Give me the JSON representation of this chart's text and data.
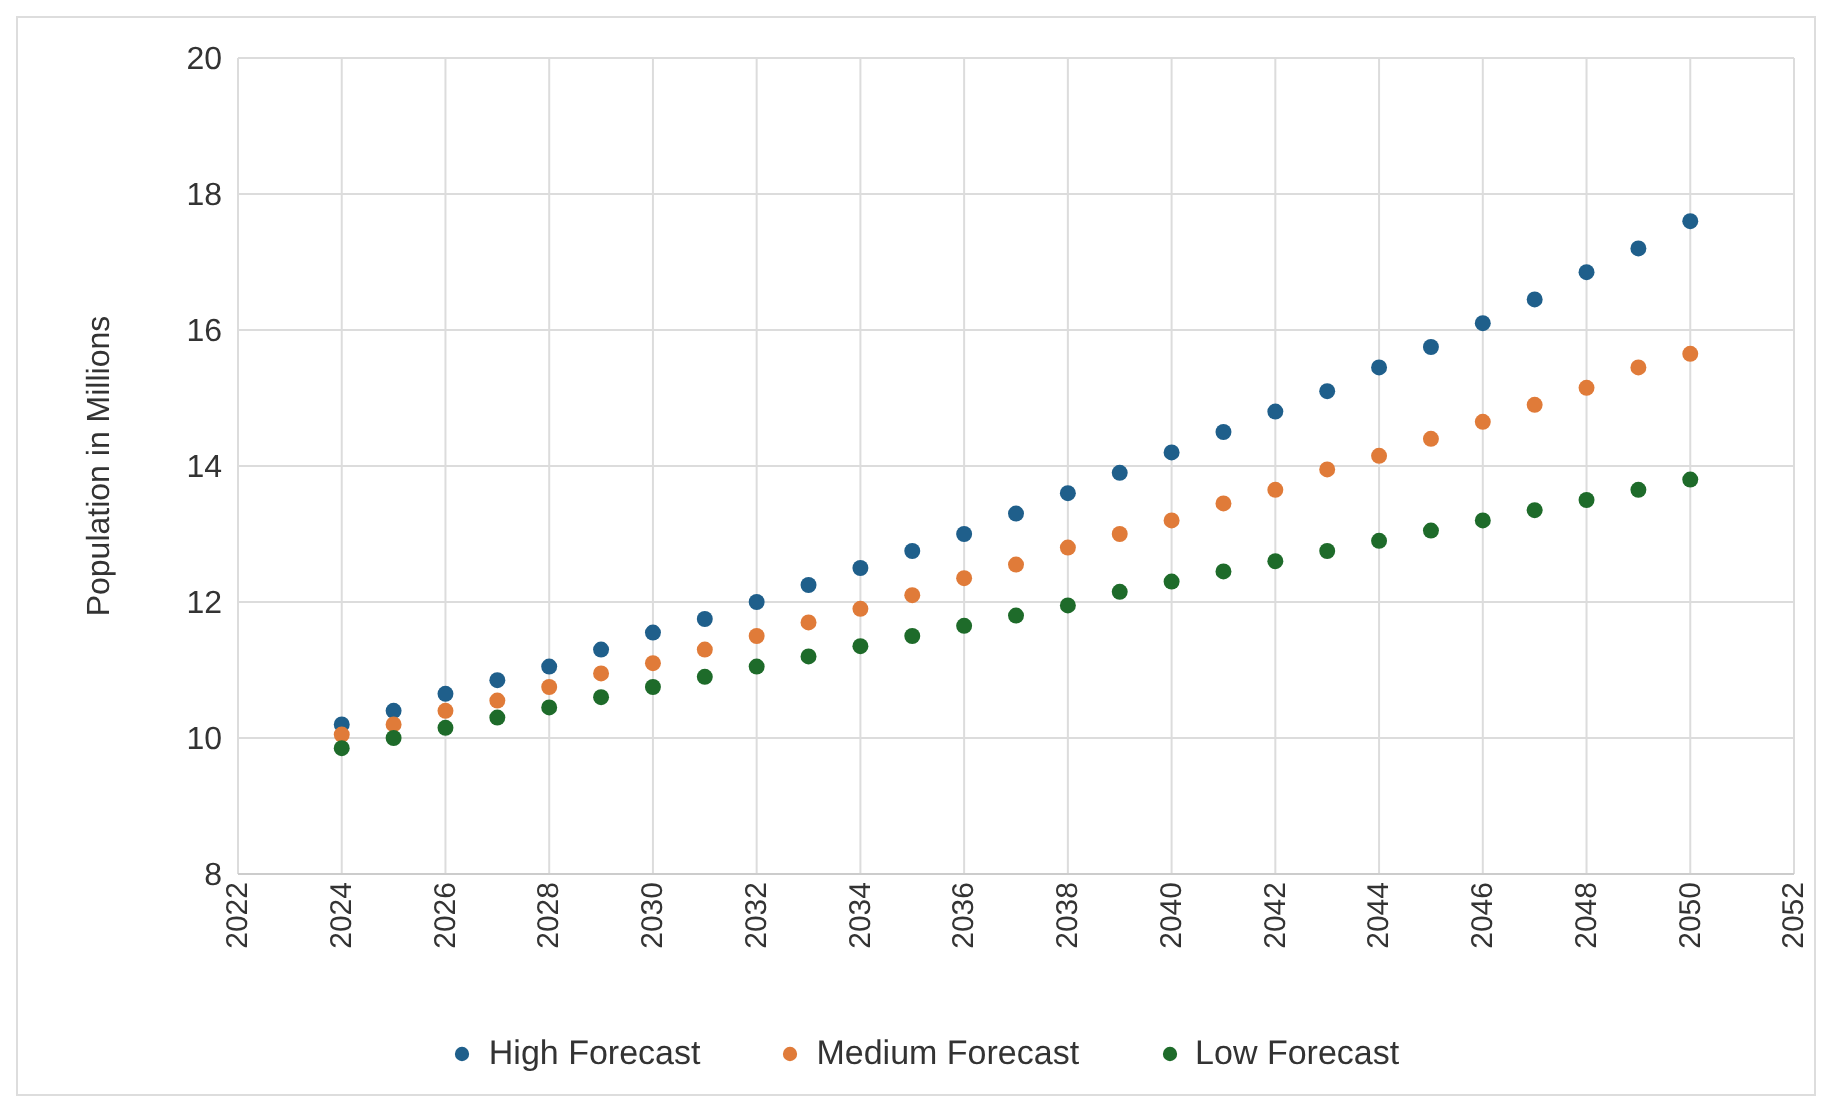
{
  "chart_data": {
    "type": "scatter",
    "ylabel": "Population in Millions",
    "x": [
      2024,
      2025,
      2026,
      2027,
      2028,
      2029,
      2030,
      2031,
      2032,
      2033,
      2034,
      2035,
      2036,
      2037,
      2038,
      2039,
      2040,
      2041,
      2042,
      2043,
      2044,
      2045,
      2046,
      2047,
      2048,
      2049,
      2050
    ],
    "series": [
      {
        "name": "High Forecast",
        "color": "#1f5f8b",
        "values": [
          10.2,
          10.4,
          10.65,
          10.85,
          11.05,
          11.3,
          11.55,
          11.75,
          12.0,
          12.25,
          12.5,
          12.75,
          13.0,
          13.3,
          13.6,
          13.9,
          14.2,
          14.5,
          14.8,
          15.1,
          15.45,
          15.75,
          16.1,
          16.45,
          16.85,
          17.2,
          17.6
        ]
      },
      {
        "name": "Medium Forecast",
        "color": "#e07b39",
        "values": [
          10.05,
          10.2,
          10.4,
          10.55,
          10.75,
          10.95,
          11.1,
          11.3,
          11.5,
          11.7,
          11.9,
          12.1,
          12.35,
          12.55,
          12.8,
          13.0,
          13.2,
          13.45,
          13.65,
          13.95,
          14.15,
          14.4,
          14.65,
          14.9,
          15.15,
          15.45,
          15.65
        ]
      },
      {
        "name": "Low Forecast",
        "color": "#1e6b2a",
        "values": [
          9.85,
          10.0,
          10.15,
          10.3,
          10.45,
          10.6,
          10.75,
          10.9,
          11.05,
          11.2,
          11.35,
          11.5,
          11.65,
          11.8,
          11.95,
          12.15,
          12.3,
          12.45,
          12.6,
          12.75,
          12.9,
          13.05,
          13.2,
          13.35,
          13.5,
          13.65,
          13.8
        ]
      }
    ],
    "xlim": [
      2022,
      2052
    ],
    "xticks": [
      2022,
      2024,
      2026,
      2028,
      2030,
      2032,
      2034,
      2036,
      2038,
      2040,
      2042,
      2044,
      2046,
      2048,
      2050,
      2052
    ],
    "ylim": [
      8,
      20
    ],
    "yticks": [
      8,
      10,
      12,
      14,
      16,
      18,
      20
    ],
    "grid": true,
    "legend": "bottom",
    "marker": "circle"
  }
}
